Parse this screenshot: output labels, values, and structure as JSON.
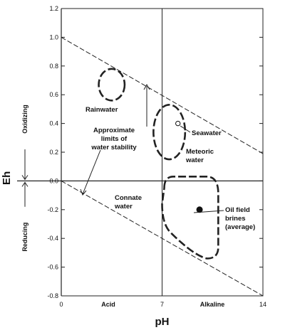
{
  "chart_data": {
    "type": "scatter",
    "xlabel": "pH",
    "ylabel": "Eh",
    "xlim": [
      0,
      14
    ],
    "ylim": [
      -0.8,
      1.2
    ],
    "x_ticks": [
      "0",
      "7",
      "14"
    ],
    "y_ticks": [
      "1.2",
      "1.0",
      "0.8",
      "0.6",
      "0.4",
      "0.2",
      "0.0",
      "-0.2",
      "-0.4",
      "-0.6",
      "-0.8"
    ],
    "x_category_labels": [
      "Acid",
      "Alkaline"
    ],
    "y_side_labels": [
      "Oxidizing",
      "Reducing"
    ],
    "grid": false,
    "reference_lines": [
      {
        "name": "upper water stability limit",
        "points": [
          [
            0,
            1.0
          ],
          [
            14,
            0.19
          ]
        ]
      },
      {
        "name": "lower water stability limit",
        "points": [
          [
            0,
            0.0
          ],
          [
            14,
            -0.8
          ]
        ]
      },
      {
        "name": "neutral pH",
        "x": 7
      },
      {
        "name": "Eh zero",
        "y": 0.0
      }
    ],
    "regions": [
      {
        "label": "Rainwater",
        "center": [
          3.5,
          0.67
        ],
        "rx": 0.9,
        "ry": 0.11
      },
      {
        "label": "Meteoric water",
        "center": [
          7.5,
          0.34
        ],
        "rx": 1.1,
        "ry": 0.19
      },
      {
        "label": "Connate water",
        "x_range": [
          7.0,
          10.9
        ],
        "y_range": [
          -0.54,
          0.03
        ]
      }
    ],
    "points": [
      {
        "label": "Seawater",
        "x": 8.1,
        "y": 0.4,
        "marker": "open"
      },
      {
        "label": "Oil field brines (average)",
        "x": 9.6,
        "y": -0.2,
        "marker": "filled"
      }
    ],
    "annotations": [
      {
        "key": "limits",
        "lines": [
          "Approximate",
          "limits of",
          "water stability"
        ]
      },
      {
        "key": "rainwater",
        "lines": [
          "Rainwater"
        ]
      },
      {
        "key": "seawater",
        "lines": [
          "Seawater"
        ]
      },
      {
        "key": "meteoric",
        "lines": [
          "Meteoric",
          "water"
        ]
      },
      {
        "key": "connate",
        "lines": [
          "Connate",
          "water"
        ]
      },
      {
        "key": "brines",
        "lines": [
          "Oil field",
          "brines",
          "(average)"
        ]
      }
    ]
  }
}
